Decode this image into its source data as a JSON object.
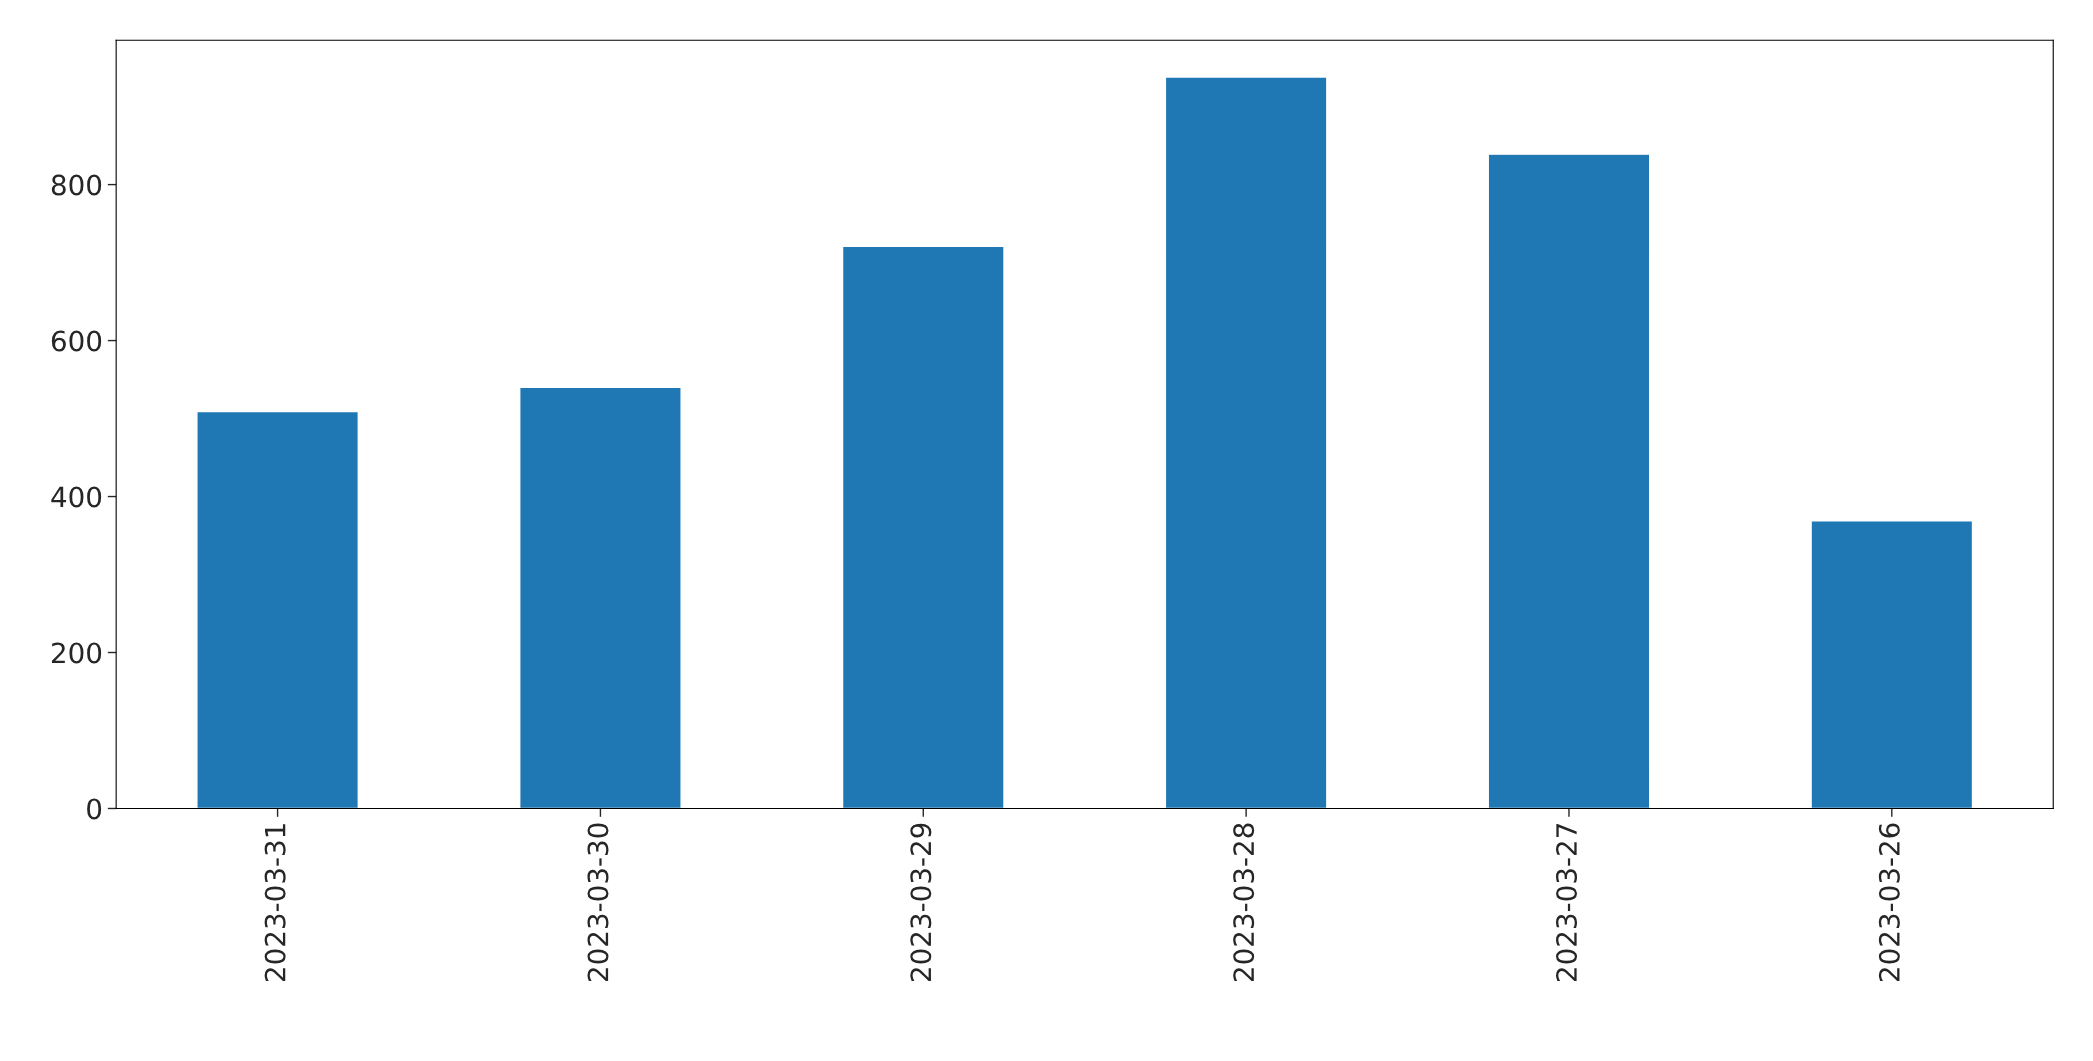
{
  "chart_data": {
    "type": "bar",
    "categories": [
      "2023-03-31",
      "2023-03-30",
      "2023-03-29",
      "2023-03-28",
      "2023-03-27",
      "2023-03-26"
    ],
    "values": [
      509,
      540,
      721,
      938,
      839,
      369
    ],
    "color": "#1f77b4",
    "ylim": [
      0,
      985
    ],
    "yticks": [
      0,
      200,
      400,
      600,
      800
    ],
    "grid": false,
    "legend": false
  }
}
